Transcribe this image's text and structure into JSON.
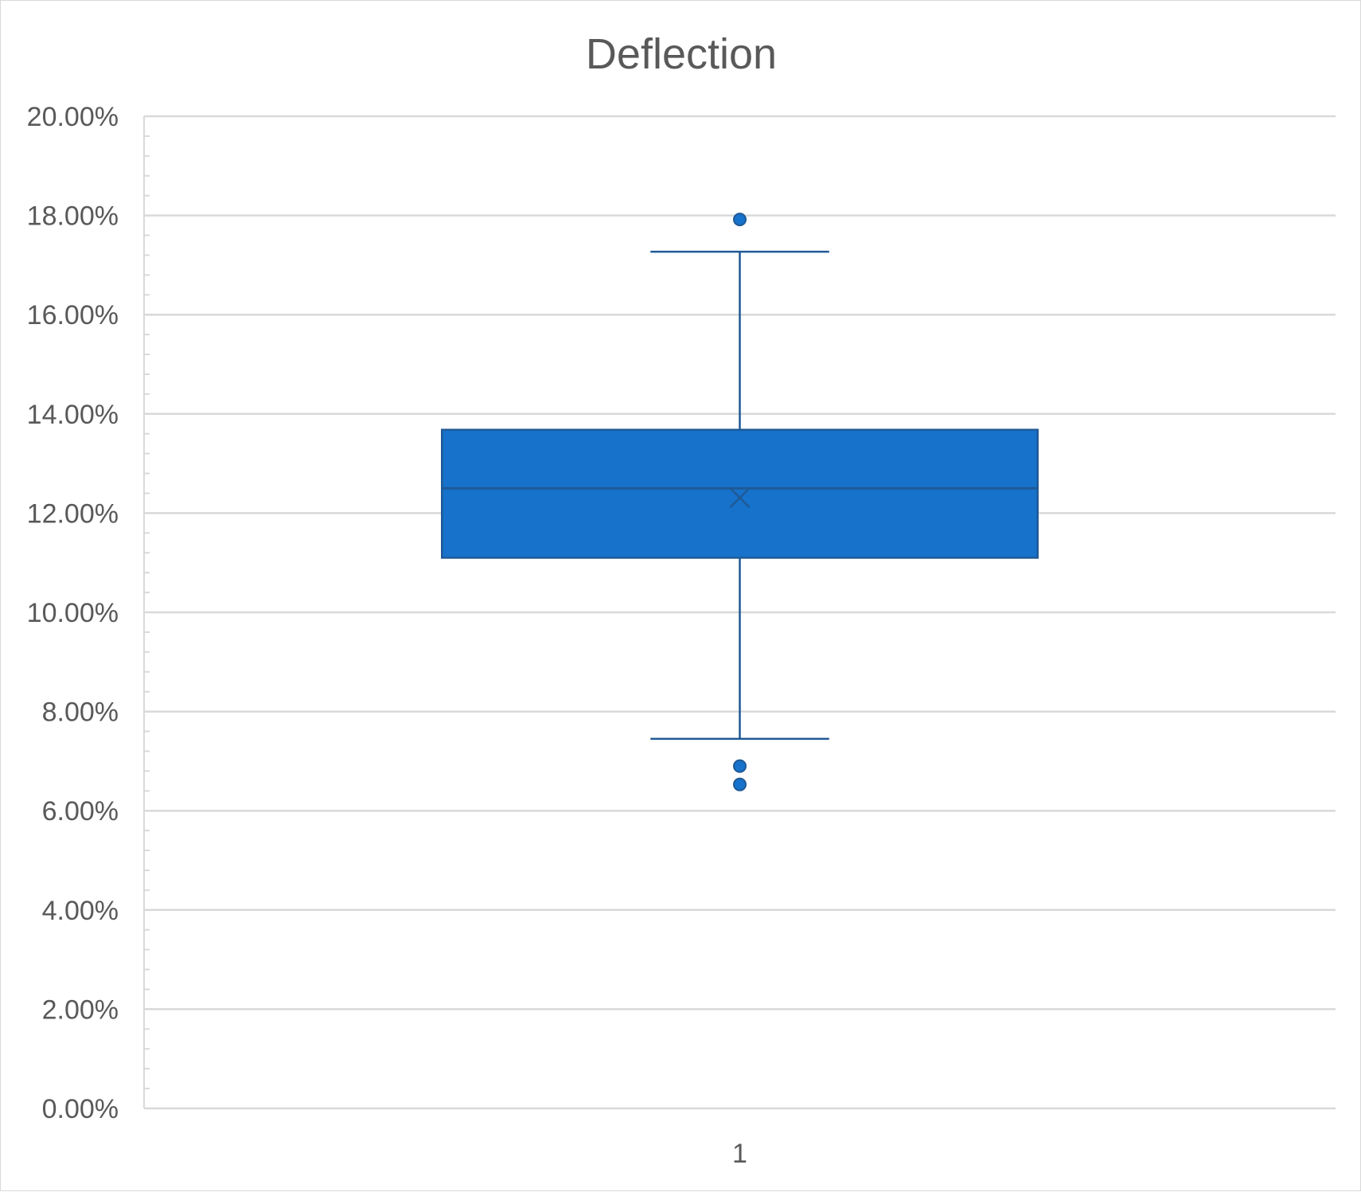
{
  "chart_data": {
    "type": "box",
    "title": "Deflection",
    "xlabel": "",
    "ylabel": "",
    "categories": [
      "1"
    ],
    "y_ticks": [
      "0.00%",
      "2.00%",
      "4.00%",
      "6.00%",
      "8.00%",
      "10.00%",
      "12.00%",
      "14.00%",
      "16.00%",
      "18.00%",
      "20.00%"
    ],
    "ylim": [
      0,
      0.2
    ],
    "y_major_step": 0.02,
    "y_minor_step": 0.004,
    "grid": true,
    "legend": "none",
    "series": [
      {
        "whisker_high": 0.1727,
        "q3": 0.1368,
        "median": 0.125,
        "mean": 0.1231,
        "q1": 0.111,
        "whisker_low": 0.0745,
        "outliers": [
          0.1792,
          0.069,
          0.0653
        ]
      }
    ],
    "colors": {
      "box_fill": "#1672CB",
      "box_stroke": "#1F5A96",
      "whisker": "#1F5A96",
      "gridline": "#D9D9D9",
      "text": "#595959"
    }
  }
}
